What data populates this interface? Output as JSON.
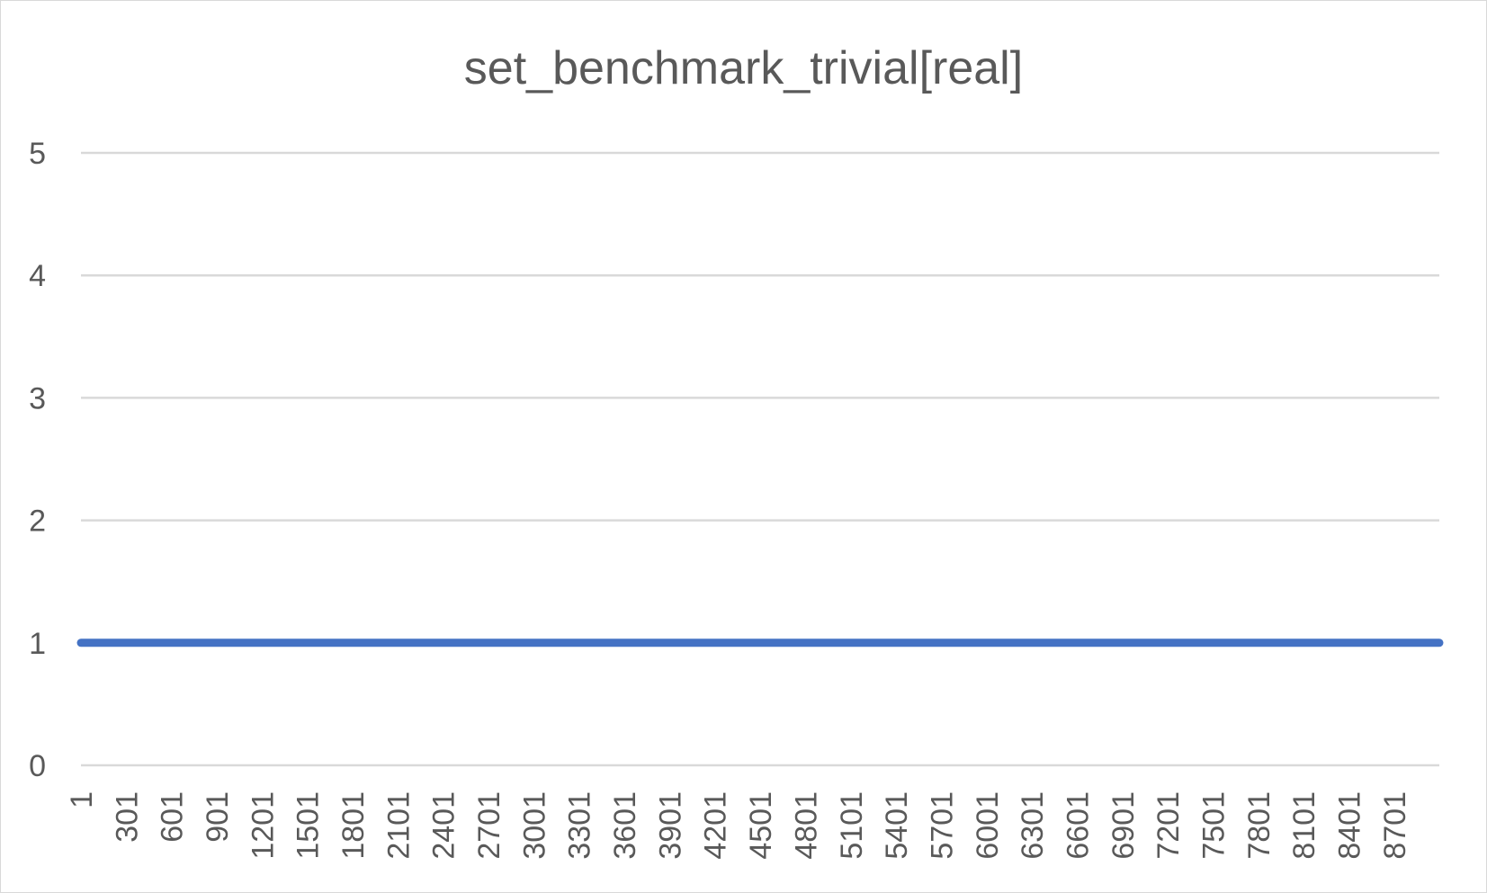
{
  "chart_data": {
    "type": "line",
    "title": "set_benchmark_trivial[real]",
    "xlabel": "",
    "ylabel": "",
    "x_range": [
      1,
      9000
    ],
    "x_tick_labels": [
      "1",
      "301",
      "601",
      "901",
      "1201",
      "1501",
      "1801",
      "2101",
      "2401",
      "2701",
      "3001",
      "3301",
      "3601",
      "3901",
      "4201",
      "4501",
      "4801",
      "5101",
      "5401",
      "5701",
      "6001",
      "6301",
      "6601",
      "6901",
      "7201",
      "7501",
      "7801",
      "8101",
      "8401",
      "8701"
    ],
    "y_tick_labels": [
      "0",
      "1",
      "2",
      "3",
      "4",
      "5"
    ],
    "ylim": [
      0,
      5
    ],
    "grid": true,
    "legend": "none",
    "series": [
      {
        "color": "#4472c4",
        "x": [
          1,
          9000
        ],
        "values": [
          1,
          1
        ]
      }
    ]
  }
}
